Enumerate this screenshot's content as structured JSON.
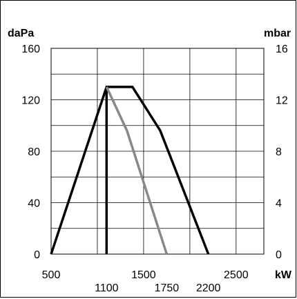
{
  "chart_data": {
    "type": "line",
    "title": "",
    "units": {
      "left": "daPa",
      "right": "mbar",
      "bottom": "kW"
    },
    "xlim": [
      500,
      2800
    ],
    "ylim": [
      0,
      160
    ],
    "ylim_right": [
      0,
      16
    ],
    "x_ticks_major": [
      {
        "value": 500,
        "label": "500"
      },
      {
        "value": 1500,
        "label": "1500"
      },
      {
        "value": 2500,
        "label": "2500"
      }
    ],
    "x_ticks_minor": [
      {
        "value": 1100,
        "label": "1100"
      },
      {
        "value": 1750,
        "label": "1750"
      },
      {
        "value": 2200,
        "label": "2200"
      }
    ],
    "y_ticks_left": [
      {
        "value": 0,
        "label": "0"
      },
      {
        "value": 40,
        "label": "40"
      },
      {
        "value": 80,
        "label": "80"
      },
      {
        "value": 120,
        "label": "120"
      },
      {
        "value": 160,
        "label": "160"
      }
    ],
    "y_ticks_right": [
      {
        "value": 0,
        "label": "0"
      },
      {
        "value": 40,
        "label": "4"
      },
      {
        "value": 80,
        "label": "8"
      },
      {
        "value": 120,
        "label": "12"
      },
      {
        "value": 160,
        "label": "16"
      }
    ],
    "grid": true,
    "grid_x": [
      1000,
      1500,
      2000,
      2500
    ],
    "grid_y": [
      0,
      20,
      40,
      60,
      80,
      100,
      120,
      140,
      160
    ],
    "series": [
      {
        "color": "#000000",
        "points": [
          [
            500,
            0
          ],
          [
            1100,
            130
          ],
          [
            1380,
            130
          ],
          [
            1680,
            96
          ],
          [
            2200,
            0
          ]
        ]
      },
      {
        "color": "#000000",
        "points": [
          [
            1100,
            0
          ],
          [
            1100,
            130
          ]
        ]
      },
      {
        "color": "#888888",
        "points": [
          [
            1100,
            130
          ],
          [
            1320,
            96
          ],
          [
            1750,
            0
          ]
        ]
      }
    ]
  }
}
